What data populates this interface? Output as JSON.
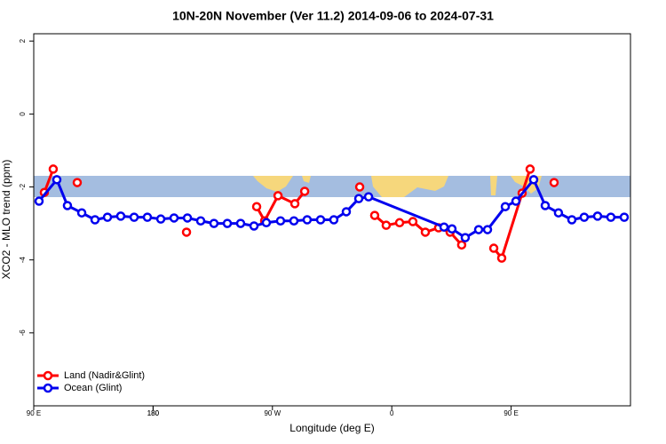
{
  "chart_data": {
    "type": "line",
    "title": "10N-20N November (Ver 11.2)   2014-09-06 to 2024-07-31",
    "x_label": "Longitude (deg E)",
    "y_label": "XCO2 - MLO trend (ppm)",
    "xlim": [
      90,
      540
    ],
    "xticks": [
      {
        "value": 90,
        "label": "90 E"
      },
      180,
      {
        "value": 270,
        "label": "90 W"
      },
      {
        "value": 360,
        "label": "0"
      },
      {
        "value": 450,
        "label": "90 E"
      },
      180
    ],
    "ylim": [
      -8,
      2.2
    ],
    "yticks": [
      2,
      0,
      -2,
      -4,
      -6
    ],
    "legend": "bottom-left",
    "series": [
      {
        "name": "Land (Nadir&Glint)",
        "color": "#ff0000",
        "x": [
          98.0,
          104.7,
          null,
          122.8,
          null,
          205.2,
          null,
          258.1,
          264.1,
          274.2,
          286.9,
          294.3,
          null,
          335.8,
          null,
          347.1,
          355.8,
          365.9,
          375.9,
          385.3,
          395.3,
          404.0,
          412.7,
          null,
          436.9,
          442.9,
          458.3,
          464.3,
          null,
          482.4
        ],
        "values": [
          -2.15,
          -1.51,
          null,
          -1.88,
          null,
          -3.24,
          null,
          -2.54,
          -2.93,
          -2.24,
          -2.46,
          -2.12,
          null,
          -2.0,
          null,
          -2.78,
          -3.05,
          -2.98,
          -2.95,
          -3.24,
          -3.12,
          -3.24,
          -3.59,
          null,
          -3.68,
          -3.95,
          -2.17,
          -1.51,
          null,
          -1.88
        ]
      },
      {
        "name": "Ocean (Glint)",
        "color": "#0000ee",
        "x": [
          94.0,
          107.4,
          115.4,
          126.2,
          136.2,
          145.6,
          155.6,
          165.7,
          175.7,
          185.8,
          195.8,
          205.9,
          215.9,
          225.9,
          236.0,
          246.0,
          256.1,
          265.4,
          276.1,
          286.2,
          296.2,
          306.3,
          316.3,
          325.7,
          335.1,
          342.5,
          399.4,
          405.4,
          415.4,
          425.5,
          432.2,
          445.6,
          453.6,
          467.0,
          475.7,
          485.7,
          495.8,
          505.1,
          515.2,
          525.2,
          535.3
        ],
        "values": [
          -2.39,
          -1.8,
          -2.51,
          -2.71,
          -2.9,
          -2.83,
          -2.8,
          -2.83,
          -2.83,
          -2.88,
          -2.85,
          -2.85,
          -2.93,
          -3.0,
          -3.0,
          -3.0,
          -3.07,
          -2.98,
          -2.93,
          -2.93,
          -2.9,
          -2.9,
          -2.9,
          -2.68,
          -2.32,
          -2.27,
          -3.1,
          -3.15,
          -3.39,
          -3.17,
          -3.17,
          -2.54,
          -2.39,
          -1.8,
          -2.51,
          -2.71,
          -2.9,
          -2.83,
          -2.8,
          -2.83,
          -2.83
        ]
      }
    ]
  }
}
